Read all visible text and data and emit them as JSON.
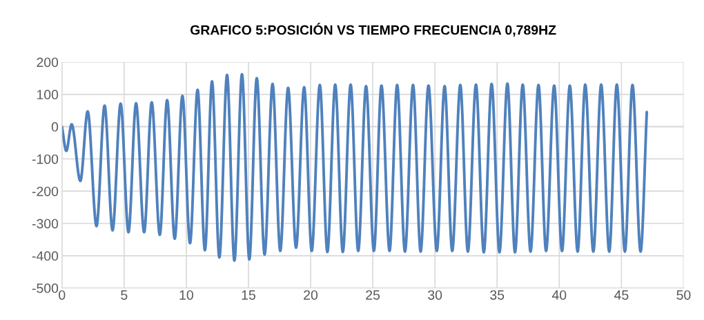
{
  "chart_data": {
    "type": "line",
    "title": "GRAFICO 5:POSICIÓN VS TIEMPO FRECUENCIA 0,789HZ",
    "xlim": [
      0,
      50
    ],
    "xticks": [
      0,
      5,
      10,
      15,
      20,
      25,
      30,
      35,
      40,
      45,
      50
    ],
    "ylim": [
      -500,
      200
    ],
    "yticks": [
      -500,
      -400,
      -300,
      -200,
      -100,
      0,
      100,
      200
    ],
    "grid": true,
    "marker": "none",
    "line_style": "solid",
    "series": [
      {
        "color": "#4f81bd",
        "x": [
          0,
          0.35,
          0.78,
          1.48,
          2.07,
          2.78,
          3.43,
          4.07,
          4.72,
          5.35,
          5.96,
          6.61,
          7.22,
          7.87,
          8.46,
          9.07,
          9.69,
          10.3,
          10.91,
          11.5,
          12.07,
          12.66,
          13.28,
          13.87,
          14.48,
          15.07,
          15.67,
          16.3,
          16.94,
          17.56,
          18.19,
          18.83,
          19.48,
          20.09,
          20.74,
          21.35,
          21.98,
          22.59,
          23.22,
          23.83,
          24.46,
          25.09,
          25.7,
          26.35,
          26.96,
          27.59,
          28.24,
          28.85,
          29.48,
          30.15,
          30.78,
          31.39,
          32.04,
          32.65,
          33.3,
          33.93,
          34.56,
          35.19,
          35.83,
          36.44,
          37.06,
          37.69,
          38.33,
          38.94,
          39.59,
          40.22,
          40.85,
          41.48,
          42.09,
          42.74,
          43.37,
          44.02,
          44.63,
          45.28,
          45.89,
          46.54,
          47.04
        ],
        "values": [
          0,
          -75,
          7,
          -168,
          47,
          -308,
          65,
          -321,
          71,
          -327,
          72,
          -327,
          75,
          -335,
          82,
          -347,
          95,
          -361,
          114,
          -383,
          140,
          -405,
          160,
          -415,
          162,
          -411,
          150,
          -396,
          132,
          -385,
          120,
          -375,
          122,
          -385,
          129,
          -388,
          130,
          -388,
          130,
          -385,
          125,
          -385,
          127,
          -385,
          129,
          -387,
          129,
          -387,
          127,
          -385,
          125,
          -385,
          129,
          -387,
          130,
          -389,
          132,
          -389,
          133,
          -389,
          130,
          -387,
          129,
          -385,
          127,
          -385,
          127,
          -387,
          130,
          -387,
          130,
          -387,
          130,
          -387,
          129,
          -387,
          45
        ]
      }
    ]
  }
}
